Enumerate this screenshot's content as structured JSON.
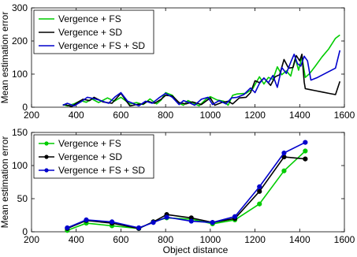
{
  "chart_data": [
    {
      "type": "line",
      "ylabel": "Mean estimation error",
      "xlabel": "",
      "xlim": [
        200,
        1600
      ],
      "ylim": [
        0,
        300
      ],
      "xticks": [
        "200",
        "400",
        "600",
        "800",
        "1000",
        "1200",
        "1400",
        "1600"
      ],
      "yticks": [
        "0",
        "100",
        "200",
        "300"
      ],
      "legend_position": "top-left",
      "grid": false,
      "series": [
        {
          "name": "Vergence + FS",
          "color": "#00cc00",
          "marker": "none",
          "x": [
            340,
            360,
            390,
            420,
            445,
            470,
            500,
            540,
            570,
            600,
            640,
            670,
            700,
            730,
            760,
            780,
            800,
            830,
            860,
            880,
            900,
            920,
            950,
            980,
            1000,
            1030,
            1060,
            1080,
            1100,
            1120,
            1160,
            1190,
            1220,
            1240,
            1260,
            1280,
            1300,
            1320,
            1340,
            1360,
            1380,
            1395,
            1410,
            1425,
            1445,
            1470,
            1500,
            1530,
            1560,
            1580
          ],
          "y": [
            8,
            4,
            10,
            20,
            15,
            25,
            14,
            28,
            18,
            30,
            10,
            14,
            8,
            25,
            10,
            22,
            44,
            36,
            12,
            6,
            20,
            14,
            4,
            24,
            32,
            22,
            18,
            6,
            36,
            40,
            42,
            56,
            92,
            70,
            90,
            84,
            122,
            98,
            110,
            94,
            148,
            112,
            152,
            90,
            102,
            124,
            152,
            176,
            208,
            218
          ]
        },
        {
          "name": "Vergence + SD",
          "color": "#000000",
          "marker": "none",
          "x": [
            340,
            350,
            380,
            400,
            430,
            460,
            480,
            520,
            560,
            600,
            640,
            670,
            700,
            720,
            750,
            780,
            800,
            830,
            860,
            890,
            920,
            960,
            1000,
            1020,
            1050,
            1080,
            1100,
            1130,
            1160,
            1180,
            1200,
            1220,
            1240,
            1270,
            1290,
            1310,
            1330,
            1350,
            1370,
            1385,
            1400,
            1410,
            1420,
            1425,
            1440,
            1470,
            1500,
            1530,
            1560,
            1580
          ],
          "y": [
            6,
            8,
            2,
            12,
            24,
            20,
            30,
            16,
            12,
            42,
            4,
            8,
            10,
            18,
            12,
            24,
            36,
            34,
            14,
            10,
            16,
            8,
            28,
            6,
            14,
            18,
            10,
            28,
            30,
            44,
            80,
            74,
            88,
            66,
            92,
            98,
            144,
            118,
            120,
            156,
            140,
            160,
            76,
            56,
            54,
            50,
            46,
            42,
            38,
            78
          ]
        },
        {
          "name": "Vergence + FS + SD",
          "color": "#0000cc",
          "marker": "none",
          "x": [
            340,
            360,
            390,
            420,
            450,
            480,
            510,
            545,
            575,
            600,
            630,
            660,
            680,
            710,
            740,
            770,
            800,
            830,
            860,
            880,
            905,
            930,
            960,
            990,
            1010,
            1040,
            1070,
            1095,
            1120,
            1150,
            1180,
            1200,
            1220,
            1240,
            1260,
            1280,
            1300,
            1320,
            1340,
            1360,
            1375,
            1390,
            1405,
            1420,
            1435,
            1450,
            1480,
            1520,
            1560,
            1580
          ],
          "y": [
            6,
            12,
            4,
            16,
            30,
            26,
            20,
            12,
            32,
            44,
            18,
            10,
            4,
            18,
            12,
            28,
            42,
            30,
            8,
            20,
            14,
            6,
            24,
            30,
            8,
            20,
            10,
            28,
            30,
            38,
            58,
            44,
            72,
            88,
            74,
            96,
            60,
            120,
            102,
            136,
            160,
            132,
            124,
            154,
            140,
            82,
            90,
            104,
            118,
            172
          ]
        }
      ]
    },
    {
      "type": "line",
      "ylabel": "Mean estimation error",
      "xlabel": "Object distance",
      "xlim": [
        200,
        1600
      ],
      "ylim": [
        0,
        150
      ],
      "xticks": [
        "200",
        "400",
        "600",
        "800",
        "1000",
        "1200",
        "1400",
        "1600"
      ],
      "yticks": [
        "0",
        "50",
        "100",
        "150"
      ],
      "legend_position": "top-left",
      "grid": false,
      "series": [
        {
          "name": "Vergence + FS",
          "color": "#00cc00",
          "marker": "circle",
          "x": [
            360,
            445,
            560,
            680,
            745,
            805,
            915,
            1010,
            1110,
            1220,
            1330,
            1425
          ],
          "y": [
            2,
            13,
            9,
            5,
            15,
            21,
            19,
            12,
            18,
            42,
            92,
            122
          ]
        },
        {
          "name": "Vergence + SD",
          "color": "#000000",
          "marker": "circle",
          "x": [
            360,
            445,
            560,
            680,
            745,
            805,
            915,
            1010,
            1110,
            1220,
            1330,
            1425
          ],
          "y": [
            5,
            17,
            13,
            5,
            15,
            26,
            21,
            14,
            20,
            61,
            113,
            110
          ]
        },
        {
          "name": "Vergence + FS + SD",
          "color": "#0000cc",
          "marker": "circle",
          "x": [
            360,
            445,
            560,
            680,
            745,
            805,
            915,
            1010,
            1110,
            1220,
            1330,
            1425
          ],
          "y": [
            6,
            18,
            15,
            6,
            14,
            22,
            16,
            14,
            23,
            68,
            119,
            135
          ]
        }
      ]
    }
  ]
}
